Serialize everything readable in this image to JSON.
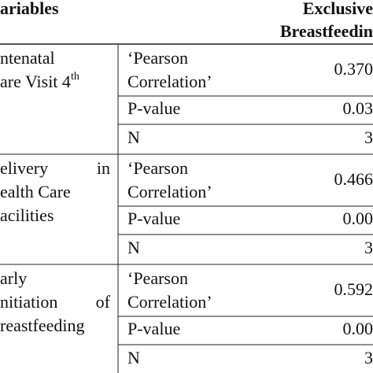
{
  "header": {
    "variables": "ariables",
    "outcome": [
      "Exclusive",
      "Breastfeedin"
    ]
  },
  "groups": [
    {
      "label": [
        "ntenatal",
        "are Visit 4"
      ],
      "label_sup": "th",
      "stats": [
        {
          "name": [
            "‘Pearson",
            "Correlation’"
          ],
          "value": "0.370"
        },
        {
          "name": [
            "P-value"
          ],
          "value": "0.03"
        },
        {
          "name": [
            "N"
          ],
          "value": "3"
        }
      ]
    },
    {
      "label": [
        "elivery",
        "ealth Care",
        "acilities"
      ],
      "label_extra": "in",
      "stats": [
        {
          "name": [
            "‘Pearson",
            "Correlation’"
          ],
          "value": "0.466"
        },
        {
          "name": [
            "P-value"
          ],
          "value": "0.00"
        },
        {
          "name": [
            "N"
          ],
          "value": "3"
        }
      ]
    },
    {
      "label": [
        "arly",
        "nitiation",
        "reastfeeding"
      ],
      "label_extra": "of",
      "stats": [
        {
          "name": [
            "‘Pearson",
            "Correlation’"
          ],
          "value": "0.592"
        },
        {
          "name": [
            "P-value"
          ],
          "value": "0.00"
        },
        {
          "name": [
            "N"
          ],
          "value": "3"
        }
      ]
    }
  ]
}
